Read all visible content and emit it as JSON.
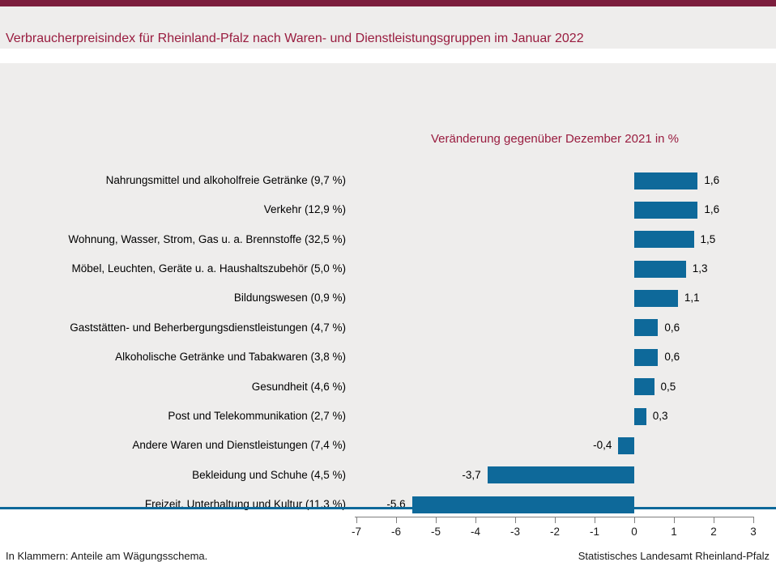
{
  "page": {
    "title": "Verbraucherpreisindex für Rheinland-Pfalz nach Waren- und Dienstleistungsgruppen im Januar 2022",
    "footer_left": "In Klammern: Anteile am Wägungsschema.",
    "footer_right": "Statistisches Landesamt Rheinland-Pfalz"
  },
  "colors": {
    "maroon_dark": "#7c1e3d",
    "maroon_text": "#991c3f",
    "bar_blue": "#0e699a",
    "gray_bg": "#eeedec",
    "axis_gray": "#7f7f7f"
  },
  "chart_data": {
    "type": "bar",
    "orientation": "horizontal",
    "title": "Veränderung gegenüber Dezember 2021 in %",
    "categories": [
      "Nahrungsmittel und alkoholfreie Getränke (9,7 %)",
      "Verkehr (12,9 %)",
      "Wohnung, Wasser, Strom, Gas u. a. Brennstoffe (32,5 %)",
      "Möbel, Leuchten, Geräte u. a. Haushaltszubehör (5,0 %)",
      "Bildungswesen (0,9 %)",
      "Gaststätten- und Beherbergungsdienstleistungen (4,7 %)",
      "Alkoholische Getränke und Tabakwaren (3,8 %)",
      "Gesundheit (4,6 %)",
      "Post und Telekommunikation (2,7 %)",
      "Andere Waren und Dienstleistungen (7,4 %)",
      "Bekleidung und Schuhe (4,5 %)",
      "Freizeit, Unterhaltung und Kultur (11,3 %)"
    ],
    "values": [
      1.6,
      1.6,
      1.5,
      1.3,
      1.1,
      0.6,
      0.6,
      0.5,
      0.3,
      -0.4,
      -3.7,
      -5.6
    ],
    "value_labels": [
      "1,6",
      "1,6",
      "1,5",
      "1,3",
      "1,1",
      "0,6",
      "0,6",
      "0,5",
      "0,3",
      "-0,4",
      "-3,7",
      "-5,6"
    ],
    "xlim": [
      -7,
      3
    ],
    "x_ticks": [
      -7,
      -6,
      -5,
      -4,
      -3,
      -2,
      -1,
      0,
      1,
      2,
      3
    ],
    "grid": false,
    "legend": false,
    "data_labels": true
  }
}
